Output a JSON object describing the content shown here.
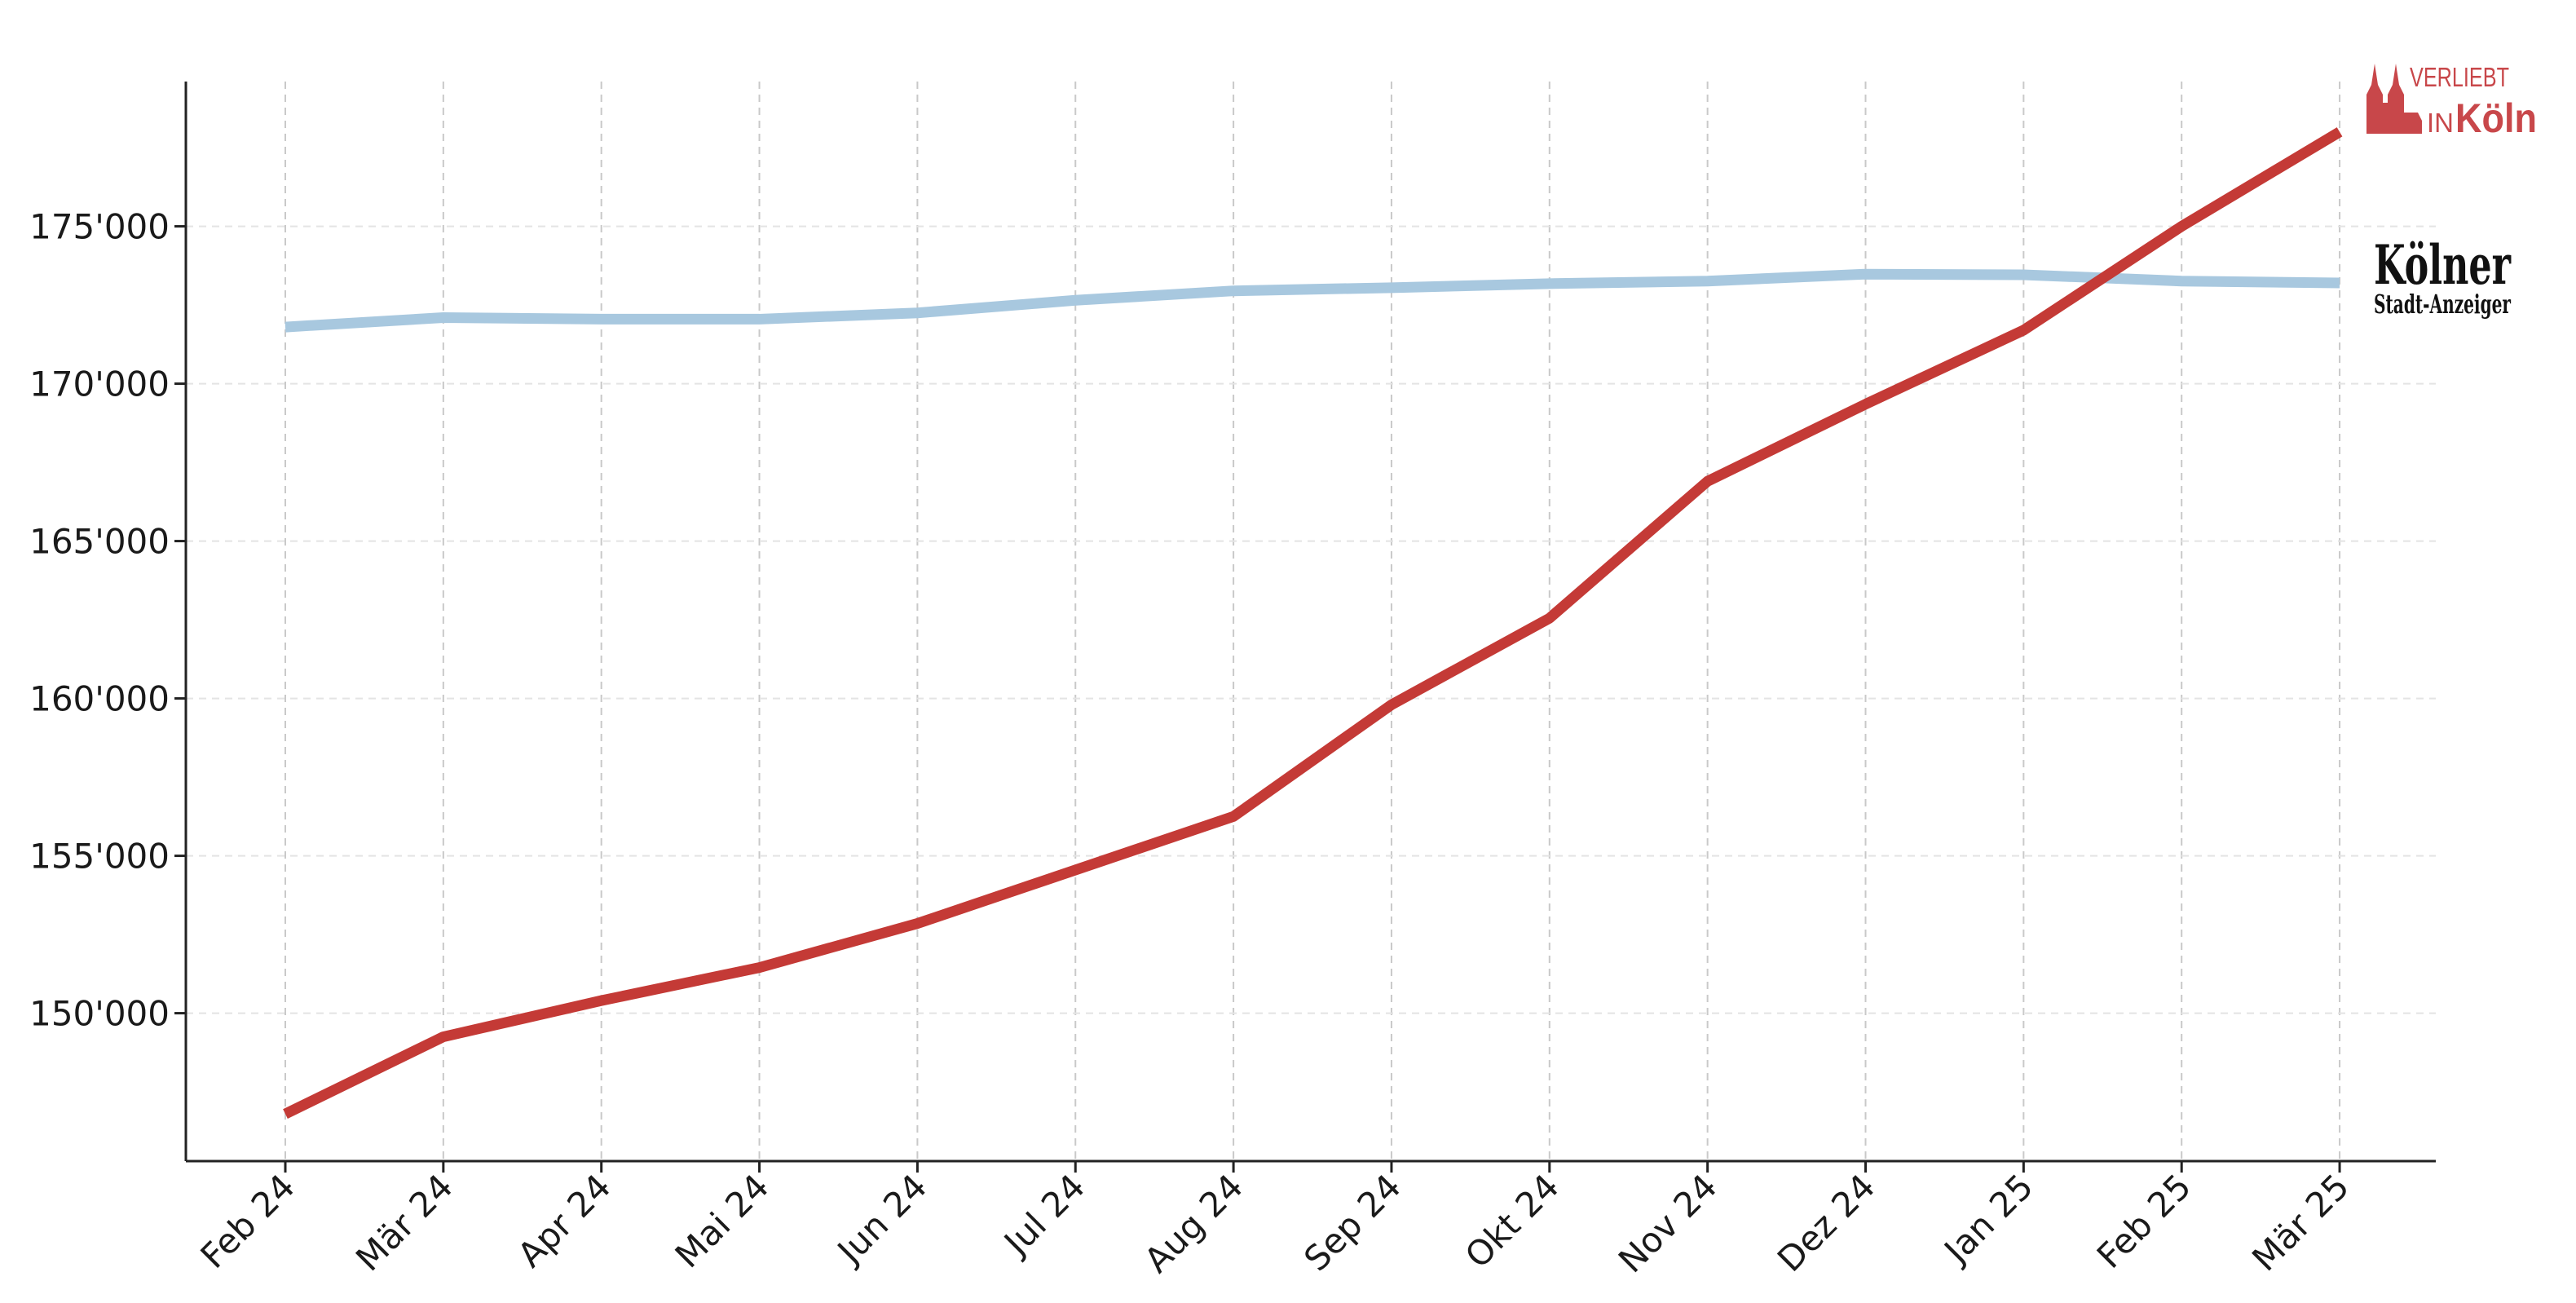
{
  "chart_data": {
    "type": "line",
    "categories": [
      "Feb 24",
      "Mär 24",
      "Apr 24",
      "Mai 24",
      "Jun 24",
      "Jul 24",
      "Aug 24",
      "Sep 24",
      "Okt 24",
      "Nov 24",
      "Dez 24",
      "Jan 25",
      "Feb 25",
      "Mär 25"
    ],
    "series": [
      {
        "color": "#a8c8df",
        "values": [
          171800,
          172100,
          172050,
          172050,
          172250,
          172650,
          172950,
          173050,
          173180,
          173260,
          173480,
          173460,
          173260,
          173200
        ]
      },
      {
        "color": "#c43a36",
        "values": [
          146800,
          149250,
          150400,
          151450,
          152850,
          154550,
          156250,
          159800,
          162550,
          166900,
          169350,
          171700,
          175000,
          178000
        ]
      }
    ],
    "yticks": [
      "150'000",
      "155'000",
      "160'000",
      "165'000",
      "170'000",
      "175'000"
    ],
    "ytick_values": [
      150000,
      155000,
      160000,
      165000,
      170000,
      175000
    ],
    "ylim": [
      145300,
      179600
    ],
    "grid": true,
    "title": "",
    "xlabel": "",
    "ylabel": ""
  },
  "logos": {
    "verliebt_line1": "VERLIEBT",
    "verliebt_line2_in": "IN",
    "verliebt_line2_city": "Köln",
    "ksta_line1": "Kölner",
    "ksta_line2": "Stadt-Anzeiger"
  }
}
